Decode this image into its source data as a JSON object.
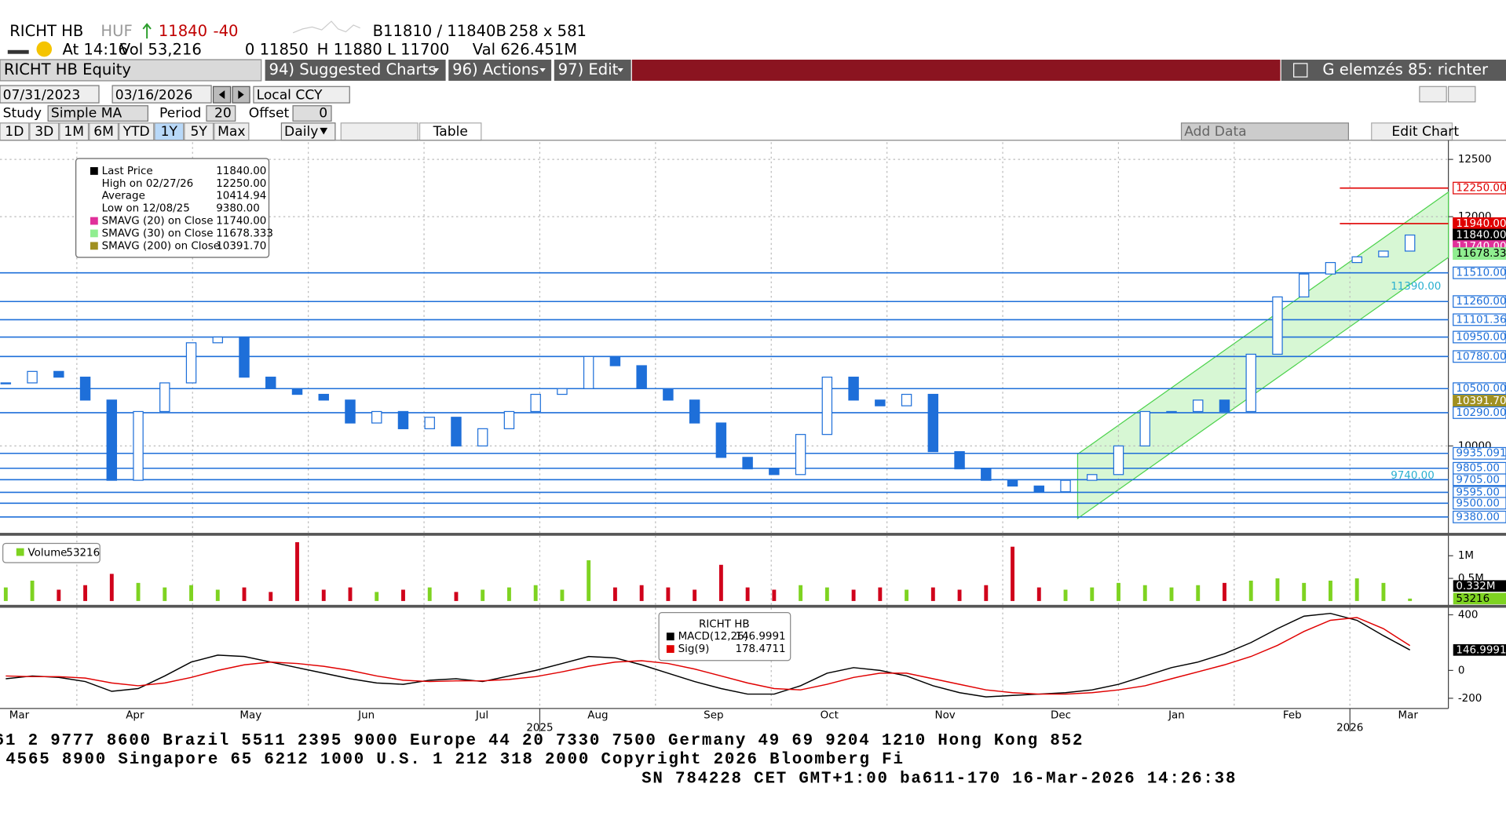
{
  "header": {
    "ticker": "RICHT HB",
    "currency": "HUF",
    "last": "11840",
    "change": "-40",
    "bid_ask": "B11810 / 11840B",
    "size": "258 x 581",
    "time": "At 14:16",
    "volume": "Vol 53,216",
    "open": "0 11850",
    "high": "H 11880",
    "low": "L 11700",
    "value": "Val 626.451M"
  },
  "toolbar": {
    "security": "RICHT HB Equity",
    "menus": [
      "94) Suggested Charts",
      "96) Actions",
      "97) Edit"
    ],
    "page": "G elemzés 85: richter"
  },
  "range_bar": {
    "start": "07/31/2023",
    "end": "03/16/2026",
    "currency": "Local CCY",
    "study_label": "Study",
    "study": "Simple MA",
    "period_label": "Period",
    "period": "20",
    "offset_label": "Offset",
    "offset": "0",
    "ranges": [
      "1D",
      "3D",
      "1M",
      "6M",
      "YTD",
      "1Y",
      "5Y",
      "Max"
    ],
    "selected": "1Y",
    "frequency": "Daily",
    "table": "Table",
    "add_data": "Add Data",
    "edit_chart": "Edit Chart"
  },
  "legend": {
    "rows": [
      {
        "label": "Last Price",
        "value": "11840.00",
        "color": "#000000"
      },
      {
        "label": "High on 02/27/26",
        "value": "12250.00",
        "color": null
      },
      {
        "label": "Average",
        "value": "10414.94",
        "color": null
      },
      {
        "label": "Low on 12/08/25",
        "value": "9380.00",
        "color": null
      },
      {
        "label": "SMAVG (20)  on Close",
        "value": "11740.00",
        "color": "#e0309a"
      },
      {
        "label": "SMAVG (30)  on Close",
        "value": "11678.333",
        "color": "#90ee90"
      },
      {
        "label": "SMAVG (200)  on Close",
        "value": "10391.70",
        "color": "#a09020"
      }
    ]
  },
  "chart_data": [
    {
      "type": "candlestick",
      "name": "Price",
      "color": "#1e6fd9",
      "ylim": [
        9300,
        12650
      ],
      "yticks": [
        12500,
        12000,
        10000
      ],
      "closes": [
        10550,
        10650,
        10600,
        10400,
        9700,
        10300,
        10550,
        10900,
        10950,
        10600,
        10500,
        10450,
        10400,
        10200,
        10300,
        10150,
        10250,
        10000,
        10150,
        10300,
        10450,
        10500,
        10780,
        10700,
        10500,
        10400,
        10200,
        9900,
        9800,
        9750,
        10100,
        10600,
        10400,
        10350,
        10450,
        9950,
        9800,
        9700,
        9650,
        9600,
        9700,
        9750,
        10000,
        10300,
        10300,
        10400,
        10300,
        10800,
        11300,
        11500,
        11600,
        11650,
        11700,
        11840
      ],
      "levels": [
        {
          "value": 12250,
          "label": "12250.00",
          "color": "#e00000",
          "fill": "#ffffff"
        },
        {
          "value": 11940,
          "label": "11940.00",
          "color": "#e00000",
          "fill": "#e00000"
        },
        {
          "value": 11840,
          "label": "11840.00",
          "color": null,
          "fill": "#000000"
        },
        {
          "value": 11740,
          "label": "11740.00",
          "color": null,
          "fill": "#e0309a"
        },
        {
          "value": 11678.333,
          "label": "11678.333",
          "color": null,
          "fill": "#90ee90"
        },
        {
          "value": 11510,
          "label": "11510.00",
          "color": "#1e6fd9",
          "fill": "#ffffff"
        },
        {
          "value": 11260,
          "label": "11260.00",
          "color": "#1e6fd9",
          "fill": "#ffffff"
        },
        {
          "value": 11101.364,
          "label": "11101.364",
          "color": "#1e6fd9",
          "fill": "#ffffff"
        },
        {
          "value": 10950,
          "label": "10950.00",
          "color": "#1e6fd9",
          "fill": "#ffffff"
        },
        {
          "value": 10780,
          "label": "10780.00",
          "color": "#1e6fd9",
          "fill": "#ffffff"
        },
        {
          "value": 10500,
          "label": "10500.00",
          "color": "#1e6fd9",
          "fill": "#ffffff"
        },
        {
          "value": 10391.7,
          "label": "10391.70",
          "color": null,
          "fill": "#a09020"
        },
        {
          "value": 10290,
          "label": "10290.00",
          "color": "#1e6fd9",
          "fill": "#ffffff"
        },
        {
          "value": 9935.091,
          "label": "9935.091",
          "color": "#1e6fd9",
          "fill": "#ffffff"
        },
        {
          "value": 9805,
          "label": "9805.00",
          "color": "#1e6fd9",
          "fill": "#ffffff"
        },
        {
          "value": 9705,
          "label": "9705.00",
          "color": "#1e6fd9",
          "fill": "#ffffff"
        },
        {
          "value": 9595,
          "label": "9595.00",
          "color": "#1e6fd9",
          "fill": "#ffffff"
        },
        {
          "value": 9500,
          "label": "9500.00",
          "color": "#1e6fd9",
          "fill": "#ffffff"
        },
        {
          "value": 9380,
          "label": "9380.00",
          "color": "#1e6fd9",
          "fill": "#ffffff"
        }
      ],
      "annotations": [
        {
          "value": 11390,
          "label": "11390.00"
        },
        {
          "value": 9740,
          "label": "9740.00"
        }
      ],
      "categories": [
        "Mar",
        "Apr",
        "May",
        "Jun",
        "Jul",
        "Aug",
        "Sep",
        "Oct",
        "Nov",
        "Dec",
        "Jan",
        "Feb",
        "Mar"
      ],
      "years": [
        {
          "label": "2025",
          "after": "Jul"
        },
        {
          "label": "2026",
          "after": "Feb"
        }
      ]
    },
    {
      "type": "volume",
      "name": "Volume",
      "legend_value": 53216,
      "ylim": [
        0,
        1400000
      ],
      "yticks": [
        {
          "value": 1000000,
          "label": "1M"
        },
        {
          "value": 500000,
          "label": "0.5M"
        }
      ],
      "up_color": "#7ed321",
      "down_color": "#d0021b",
      "values": [
        300000,
        450000,
        250000,
        350000,
        600000,
        400000,
        300000,
        350000,
        250000,
        300000,
        200000,
        1300000,
        250000,
        300000,
        200000,
        250000,
        300000,
        200000,
        250000,
        300000,
        350000,
        250000,
        900000,
        300000,
        350000,
        300000,
        250000,
        800000,
        300000,
        250000,
        350000,
        300000,
        250000,
        300000,
        250000,
        300000,
        250000,
        350000,
        1200000,
        300000,
        250000,
        300000,
        400000,
        350000,
        300000,
        350000,
        400000,
        450000,
        500000,
        400000,
        450000,
        500000,
        400000,
        53216
      ],
      "markers": [
        {
          "value": 332000,
          "label": "0.332M",
          "fill": "#000000"
        },
        {
          "value": 53216,
          "label": "53216",
          "fill": "#7ed321"
        }
      ]
    },
    {
      "type": "macd",
      "title": "RICHT HB",
      "ylim": [
        -260,
        430
      ],
      "yticks": [
        400,
        0,
        -200
      ],
      "series": [
        {
          "name": "MACD(12,26)",
          "color": "#000000",
          "last": "146.9991",
          "values": [
            -60,
            -40,
            -50,
            -80,
            -150,
            -130,
            -40,
            60,
            110,
            100,
            60,
            20,
            -20,
            -60,
            -90,
            -100,
            -70,
            -60,
            -80,
            -40,
            0,
            50,
            100,
            90,
            40,
            -20,
            -80,
            -130,
            -170,
            -170,
            -110,
            -20,
            20,
            0,
            -40,
            -110,
            -160,
            -190,
            -180,
            -170,
            -160,
            -140,
            -100,
            -40,
            20,
            60,
            120,
            200,
            300,
            390,
            410,
            360,
            250,
            146.9991
          ]
        },
        {
          "name": "Sig(9)",
          "color": "#e00000",
          "last": "178.4711",
          "values": [
            -40,
            -45,
            -45,
            -55,
            -90,
            -110,
            -90,
            -50,
            0,
            40,
            60,
            50,
            30,
            0,
            -40,
            -70,
            -80,
            -75,
            -75,
            -65,
            -45,
            -10,
            30,
            60,
            70,
            50,
            10,
            -40,
            -90,
            -130,
            -140,
            -100,
            -50,
            -20,
            -20,
            -60,
            -100,
            -140,
            -160,
            -170,
            -170,
            -160,
            -140,
            -110,
            -60,
            -10,
            40,
            100,
            180,
            280,
            360,
            380,
            300,
            178.4711
          ]
        }
      ],
      "marker": {
        "value": 146.9991,
        "label": "146.9991"
      }
    }
  ],
  "footer": [
    "61 2 9777 8600 Brazil 5511 2395 9000 Europe 44 20 7330 7500 Germany 49 69 9204 1210 Hong Kong 852",
    "4565 8900       Singapore 65 6212 1000       U.S. 1 212 318 2000        Copyright 2026 Bloomberg Fi",
    "SN 784228 CET  GMT+1:00 ba611-170 16-Mar-2026 14:26:38"
  ]
}
